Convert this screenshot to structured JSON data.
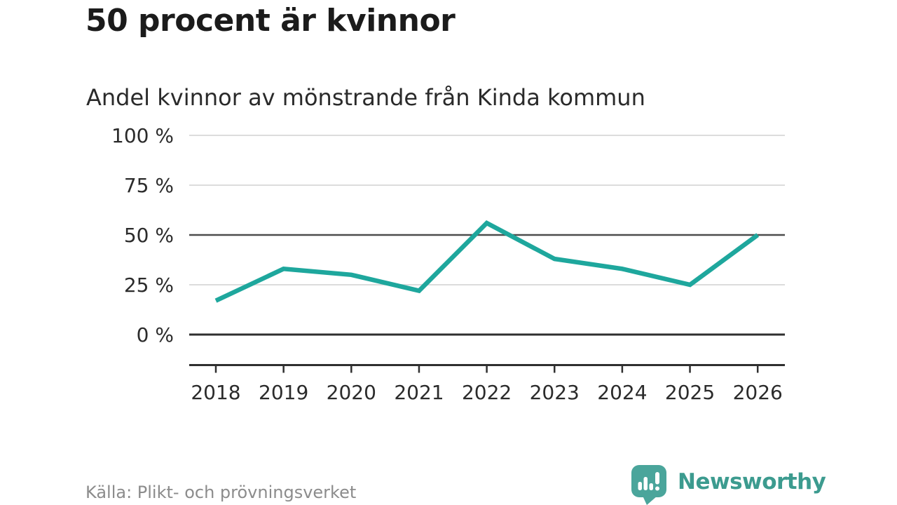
{
  "header": {
    "title": "50 procent är kvinnor",
    "subtitle": "Andel kvinnor av mönstrande från Kinda kommun"
  },
  "chart_data": {
    "type": "line",
    "title": "50 procent är kvinnor",
    "subtitle": "Andel kvinnor av mönstrande från Kinda kommun",
    "categories": [
      "2018",
      "2019",
      "2020",
      "2021",
      "2022",
      "2023",
      "2024",
      "2025",
      "2026"
    ],
    "series": [
      {
        "name": "Andel kvinnor av mönstrande",
        "values": [
          17,
          33,
          30,
          22,
          56,
          38,
          33,
          25,
          50
        ]
      }
    ],
    "unit": "%",
    "xlabel": "",
    "ylabel": "",
    "ylim": [
      0,
      100
    ],
    "yticks": [
      0,
      25,
      50,
      75,
      100
    ],
    "ytick_format": "{v} %",
    "grid": "horizontal",
    "emphasized_gridlines": [
      50
    ],
    "baseline_gridline": 0,
    "legend": "none",
    "line_color": "#1ea79d"
  },
  "footer": {
    "source": "Källa: Plikt- och prövningsverket",
    "brand": {
      "name": "Newsworthy",
      "icon": "newsworthy-chart-bubble-icon",
      "icon_color": "#4aa59b",
      "text_color": "#3c9b8f"
    }
  },
  "colors": {
    "background": "#ffffff",
    "title_text": "#1b1b1b",
    "subtitle_text": "#2a2a2a",
    "axis_text": "#2b2b2b",
    "grid_light": "#dcdcdc",
    "grid_mid": "#4d4d4d",
    "grid_dark": "#2f2f2f",
    "source_text": "#8c8c8c"
  }
}
